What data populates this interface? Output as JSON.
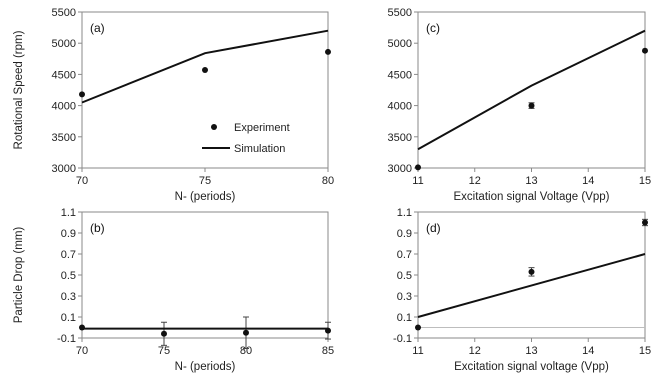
{
  "chart_data": [
    {
      "type": "line",
      "panel": "(a)",
      "xlabel": "N- (periods)",
      "ylabel": "Rotational Speed (rpm)",
      "xlim": [
        70,
        80
      ],
      "ylim": [
        3000,
        5500
      ],
      "xticks": [
        70,
        75,
        80
      ],
      "xtick_labels": [
        "70",
        "75",
        "80"
      ],
      "yticks": [
        3000,
        3500,
        4000,
        4500,
        5000,
        5500
      ],
      "ytick_labels": [
        "3000",
        "3500",
        "4000",
        "4500",
        "5000",
        "5500"
      ],
      "grid": false,
      "legend": {
        "placement": "bottom-right",
        "entries": [
          {
            "label": "Experiment",
            "marker": "dot"
          },
          {
            "label": "Simulation",
            "marker": "line"
          }
        ]
      },
      "series": [
        {
          "name": "Experiment",
          "kind": "points",
          "x": [
            70,
            75,
            80
          ],
          "y": [
            4180,
            4570,
            4860
          ],
          "err": [
            0,
            0,
            0
          ]
        },
        {
          "name": "Simulation",
          "kind": "line",
          "x": [
            70,
            75,
            80
          ],
          "y": [
            4050,
            4840,
            5200
          ]
        }
      ]
    },
    {
      "type": "line",
      "panel": "(c)",
      "xlabel": "Excitation signal Voltage (Vpp)",
      "ylabel": "",
      "xlim": [
        11,
        15
      ],
      "ylim": [
        3000,
        5500
      ],
      "xticks": [
        11,
        12,
        13,
        14,
        15
      ],
      "xtick_labels": [
        "11",
        "12",
        "13",
        "14",
        "15"
      ],
      "yticks": [
        3000,
        3500,
        4000,
        4500,
        5000,
        5500
      ],
      "ytick_labels": [
        "3000",
        "3500",
        "4000",
        "4500",
        "5000",
        "5500"
      ],
      "grid": false,
      "series": [
        {
          "name": "Experiment",
          "kind": "points",
          "x": [
            11,
            13,
            15
          ],
          "y": [
            3010,
            4000,
            4880
          ],
          "err": [
            0,
            45,
            0
          ]
        },
        {
          "name": "Simulation",
          "kind": "line",
          "x": [
            11,
            13,
            15
          ],
          "y": [
            3300,
            4320,
            5200
          ]
        }
      ]
    },
    {
      "type": "line",
      "panel": "(b)",
      "xlabel": "N- (periods)",
      "ylabel": "Particle Drop (mm)",
      "xlim": [
        70,
        85
      ],
      "ylim": [
        -0.1,
        1.1
      ],
      "xticks": [
        70,
        75,
        80,
        85
      ],
      "xtick_labels": [
        "70",
        "75",
        "80",
        "85"
      ],
      "yticks": [
        -0.1,
        0.1,
        0.3,
        0.5,
        0.7,
        0.9,
        1.1
      ],
      "ytick_labels": [
        "-0.1",
        "0.1",
        "0.3",
        "0.5",
        "0.7",
        "0.9",
        "1.1"
      ],
      "grid": false,
      "series": [
        {
          "name": "Experiment",
          "kind": "points",
          "x": [
            70,
            75,
            80,
            85
          ],
          "y": [
            0.0,
            -0.06,
            -0.05,
            -0.03
          ],
          "err": [
            0,
            0.11,
            0.15,
            0.08
          ]
        },
        {
          "name": "Simulation",
          "kind": "line",
          "x": [
            70,
            85
          ],
          "y": [
            -0.01,
            -0.01
          ]
        }
      ]
    },
    {
      "type": "line",
      "panel": "(d)",
      "xlabel": "Excitation signal voltage (Vpp)",
      "ylabel": "",
      "xlim": [
        11,
        15
      ],
      "ylim": [
        -0.1,
        1.1
      ],
      "xticks": [
        11,
        12,
        13,
        14,
        15
      ],
      "xtick_labels": [
        "11",
        "12",
        "13",
        "14",
        "15"
      ],
      "yticks": [
        -0.1,
        0.1,
        0.3,
        0.5,
        0.7,
        0.9,
        1.1
      ],
      "ytick_labels": [
        "-0.1",
        "0.1",
        "0.3",
        "0.5",
        "0.7",
        "0.9",
        "1.1"
      ],
      "grid": false,
      "zero_line": true,
      "series": [
        {
          "name": "Experiment",
          "kind": "points",
          "x": [
            11,
            13,
            15
          ],
          "y": [
            0.0,
            0.53,
            1.0
          ],
          "err": [
            0,
            0.04,
            0.03
          ]
        },
        {
          "name": "Simulation",
          "kind": "line",
          "x": [
            11,
            15
          ],
          "y": [
            0.1,
            0.7
          ]
        }
      ]
    }
  ]
}
